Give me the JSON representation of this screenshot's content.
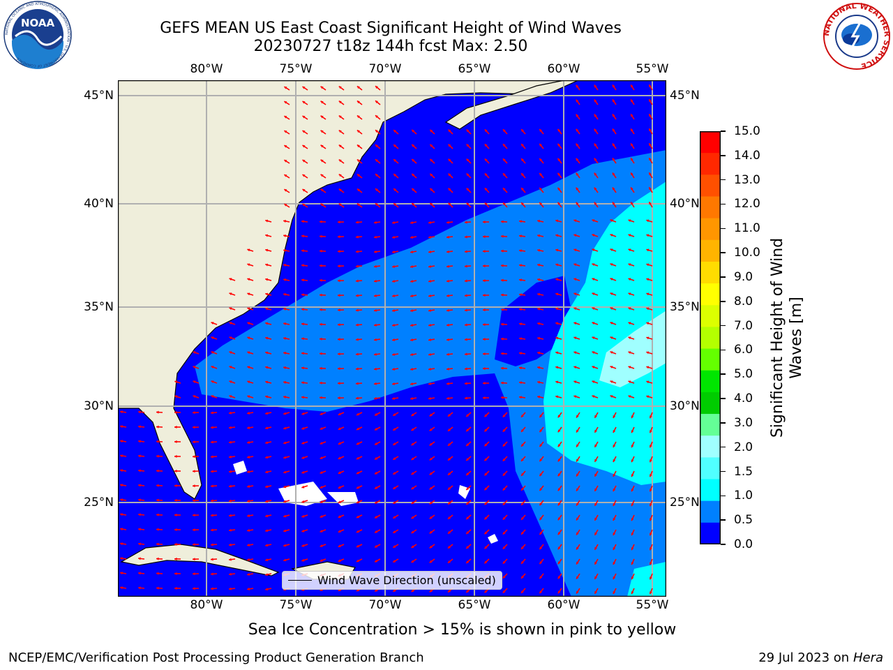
{
  "title": {
    "line1": "GEFS MEAN US East Coast Significant Height of Wind Waves",
    "line2": "20230727 t18z 144h fcst   Max: 2.50"
  },
  "map": {
    "lon_labels": [
      "80°W",
      "75°W",
      "70°W",
      "65°W",
      "60°W",
      "55°W"
    ],
    "lat_labels": [
      "45°N",
      "40°N",
      "35°N",
      "30°N",
      "25°N"
    ],
    "legend_label": "Wind Wave Direction (unscaled)",
    "colors": {
      "land": "#efeedb",
      "coast": "#000000",
      "grid": "#b0b0b0",
      "arrow": "#ff0000",
      "band_0_0.5": "#0000ff",
      "band_0.5_1.0": "#0080ff",
      "band_1.0_1.5": "#00ffff",
      "band_2.0_2.5": "#a0ffff"
    }
  },
  "colorbar": {
    "title_line1": "Significant Height of Wind",
    "title_line2": "Waves [m]",
    "ticks": [
      "15.0",
      "14.0",
      "13.0",
      "12.0",
      "11.0",
      "10.0",
      "9.0",
      "8.0",
      "7.0",
      "6.0",
      "5.0",
      "4.0",
      "3.0",
      "2.0",
      "1.5",
      "1.0",
      "0.5",
      "0.0"
    ],
    "colors": [
      "#ff0000",
      "#ff2800",
      "#ff5000",
      "#ff7800",
      "#ff9600",
      "#ffb400",
      "#ffdc00",
      "#ffff00",
      "#dcff00",
      "#b4ff00",
      "#64ff00",
      "#00e600",
      "#00cc00",
      "#64ff96",
      "#a0ffff",
      "#50ffff",
      "#00ffff",
      "#0080ff",
      "#0000ff"
    ]
  },
  "subtitle": "Sea Ice Concentration > 15% is shown in pink to yellow",
  "footer": {
    "left": "NCEP/EMC/Verification Post Processing Product Generation Branch",
    "date": "29 Jul 2023 on ",
    "machine": "Hera"
  },
  "logos": {
    "left_text": "NOAA",
    "left_ring": "NATIONAL OCEANIC AND ATMOSPHERIC ADMINISTRATION · U.S. DEPARTMENT OF COMMERCE",
    "right_ring": "NATIONAL WEATHER SERVICE"
  }
}
